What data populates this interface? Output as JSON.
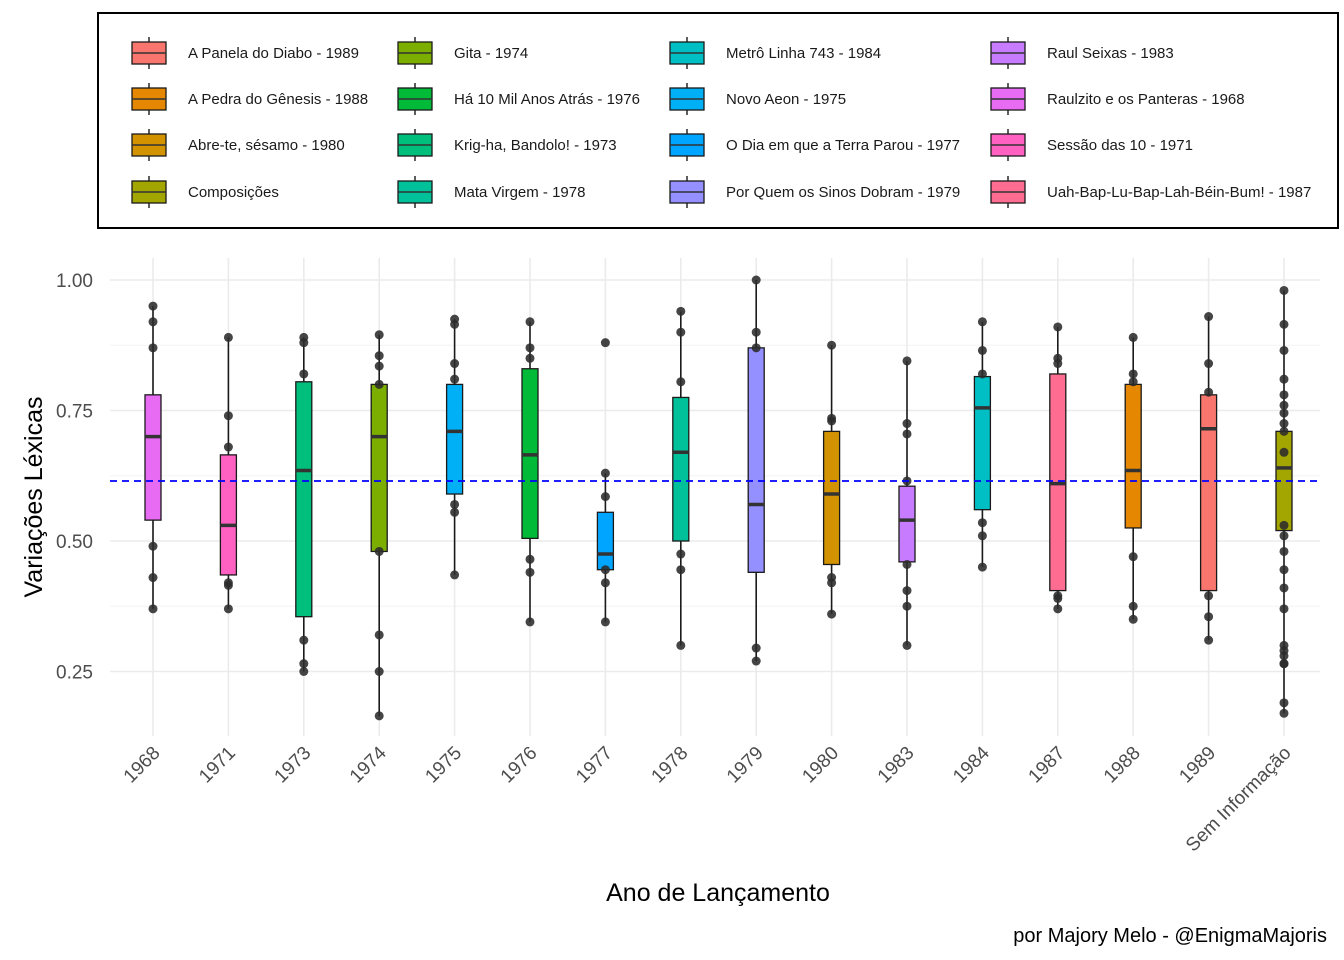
{
  "chart_data": {
    "type": "boxplot",
    "xlabel": "Ano de Lançamento",
    "ylabel": "Variações Léxicas",
    "ylim": [
      0.13,
      1.03
    ],
    "yticks": [
      0.25,
      0.5,
      0.75,
      1.0
    ],
    "ytick_labels": [
      "0.25",
      "0.50",
      "0.75",
      "1.00"
    ],
    "reference_line": {
      "y": 0.615,
      "color": "#0000ff",
      "style": "dashed"
    },
    "caption": "por Majory Melo - @EnigmaMajoris",
    "legend_position": "top",
    "grid": true,
    "categories": [
      "1968",
      "1971",
      "1973",
      "1974",
      "1975",
      "1976",
      "1977",
      "1978",
      "1979",
      "1980",
      "1983",
      "1984",
      "1987",
      "1988",
      "1989",
      "Sem Informação"
    ],
    "boxes": [
      {
        "category": "1968",
        "color": "#E76BF3",
        "q1": 0.54,
        "median": 0.7,
        "q3": 0.78,
        "whisker_low": 0.37,
        "whisker_high": 0.95,
        "points": [
          0.95,
          0.92,
          0.87,
          0.49,
          0.43,
          0.37
        ]
      },
      {
        "category": "1971",
        "color": "#FF61C3",
        "q1": 0.435,
        "median": 0.53,
        "q3": 0.665,
        "whisker_low": 0.37,
        "whisker_high": 0.89,
        "points": [
          0.89,
          0.74,
          0.68,
          0.42,
          0.415,
          0.37
        ]
      },
      {
        "category": "1973",
        "color": "#00BF7D",
        "q1": 0.355,
        "median": 0.635,
        "q3": 0.805,
        "whisker_low": 0.25,
        "whisker_high": 0.89,
        "points": [
          0.89,
          0.88,
          0.82,
          0.31,
          0.265,
          0.25
        ]
      },
      {
        "category": "1974",
        "color": "#7CAE00",
        "q1": 0.48,
        "median": 0.7,
        "q3": 0.8,
        "whisker_low": 0.165,
        "whisker_high": 0.895,
        "points": [
          0.895,
          0.855,
          0.835,
          0.8,
          0.48,
          0.32,
          0.25,
          0.165
        ]
      },
      {
        "category": "1975",
        "color": "#00B0F6",
        "q1": 0.59,
        "median": 0.71,
        "q3": 0.8,
        "whisker_low": 0.435,
        "whisker_high": 0.925,
        "points": [
          0.925,
          0.915,
          0.84,
          0.81,
          0.57,
          0.555,
          0.435
        ]
      },
      {
        "category": "1976",
        "color": "#00BA38",
        "q1": 0.505,
        "median": 0.665,
        "q3": 0.83,
        "whisker_low": 0.345,
        "whisker_high": 0.92,
        "points": [
          0.92,
          0.87,
          0.85,
          0.465,
          0.44,
          0.345
        ]
      },
      {
        "category": "1977",
        "color": "#00A5FF",
        "q1": 0.445,
        "median": 0.475,
        "q3": 0.555,
        "whisker_low": 0.345,
        "whisker_high": 0.63,
        "points": [
          0.88,
          0.63,
          0.585,
          0.445,
          0.42,
          0.345
        ]
      },
      {
        "category": "1978",
        "color": "#00C19A",
        "q1": 0.5,
        "median": 0.67,
        "q3": 0.775,
        "whisker_low": 0.3,
        "whisker_high": 0.94,
        "points": [
          0.94,
          0.9,
          0.805,
          0.475,
          0.445,
          0.3
        ]
      },
      {
        "category": "1979",
        "color": "#9590FF",
        "q1": 0.44,
        "median": 0.57,
        "q3": 0.87,
        "whisker_low": 0.27,
        "whisker_high": 1.0,
        "points": [
          1.0,
          0.9,
          0.87,
          0.295,
          0.27
        ]
      },
      {
        "category": "1980",
        "color": "#D39200",
        "q1": 0.455,
        "median": 0.59,
        "q3": 0.71,
        "whisker_low": 0.36,
        "whisker_high": 0.875,
        "points": [
          0.875,
          0.735,
          0.73,
          0.43,
          0.42,
          0.36
        ]
      },
      {
        "category": "1983",
        "color": "#C77CFF",
        "q1": 0.46,
        "median": 0.54,
        "q3": 0.605,
        "whisker_low": 0.3,
        "whisker_high": 0.845,
        "points": [
          0.845,
          0.725,
          0.705,
          0.615,
          0.455,
          0.405,
          0.375,
          0.3
        ]
      },
      {
        "category": "1984",
        "color": "#00BFC4",
        "q1": 0.56,
        "median": 0.755,
        "q3": 0.815,
        "whisker_low": 0.45,
        "whisker_high": 0.92,
        "points": [
          0.92,
          0.865,
          0.82,
          0.535,
          0.51,
          0.45
        ]
      },
      {
        "category": "1987",
        "color": "#FF6C91",
        "q1": 0.405,
        "median": 0.61,
        "q3": 0.82,
        "whisker_low": 0.37,
        "whisker_high": 0.91,
        "points": [
          0.91,
          0.85,
          0.84,
          0.395,
          0.39,
          0.37
        ]
      },
      {
        "category": "1988",
        "color": "#E58700",
        "q1": 0.525,
        "median": 0.635,
        "q3": 0.8,
        "whisker_low": 0.35,
        "whisker_high": 0.89,
        "points": [
          0.89,
          0.82,
          0.805,
          0.47,
          0.375,
          0.35
        ]
      },
      {
        "category": "1989",
        "color": "#F8766D",
        "q1": 0.405,
        "median": 0.715,
        "q3": 0.78,
        "whisker_low": 0.31,
        "whisker_high": 0.93,
        "points": [
          0.93,
          0.84,
          0.785,
          0.395,
          0.355,
          0.31
        ]
      },
      {
        "category": "Sem Informação",
        "color": "#A3A500",
        "q1": 0.52,
        "median": 0.64,
        "q3": 0.71,
        "whisker_low": 0.17,
        "whisker_high": 0.98,
        "points": [
          0.98,
          0.915,
          0.865,
          0.81,
          0.78,
          0.76,
          0.745,
          0.725,
          0.71,
          0.67,
          0.53,
          0.51,
          0.48,
          0.445,
          0.41,
          0.37,
          0.3,
          0.29,
          0.28,
          0.265,
          0.265,
          0.19,
          0.17
        ]
      }
    ],
    "legend": [
      {
        "label": "A Panela do Diabo - 1989",
        "color": "#F8766D"
      },
      {
        "label": "A Pedra do Gênesis - 1988",
        "color": "#E58700"
      },
      {
        "label": "Abre-te, sésamo - 1980",
        "color": "#D39200"
      },
      {
        "label": "Composições",
        "color": "#A3A500"
      },
      {
        "label": "Gita - 1974",
        "color": "#7CAE00"
      },
      {
        "label": "Há 10 Mil Anos Atrás - 1976",
        "color": "#00BA38"
      },
      {
        "label": "Krig-ha, Bandolo! - 1973",
        "color": "#00BF7D"
      },
      {
        "label": "Mata Virgem - 1978",
        "color": "#00C19A"
      },
      {
        "label": "Metrô Linha 743 - 1984",
        "color": "#00BFC4"
      },
      {
        "label": "Novo Aeon - 1975",
        "color": "#00B0F6"
      },
      {
        "label": "O Dia em que a Terra Parou - 1977",
        "color": "#00A5FF"
      },
      {
        "label": "Por Quem os Sinos Dobram - 1979",
        "color": "#9590FF"
      },
      {
        "label": "Raul Seixas - 1983",
        "color": "#C77CFF"
      },
      {
        "label": "Raulzito e os Panteras - 1968",
        "color": "#E76BF3"
      },
      {
        "label": "Sessão das 10 - 1971",
        "color": "#FF61C3"
      },
      {
        "label": "Uah-Bap-Lu-Bap-Lah-Béin-Bum! - 1987",
        "color": "#FF6C91"
      }
    ]
  }
}
